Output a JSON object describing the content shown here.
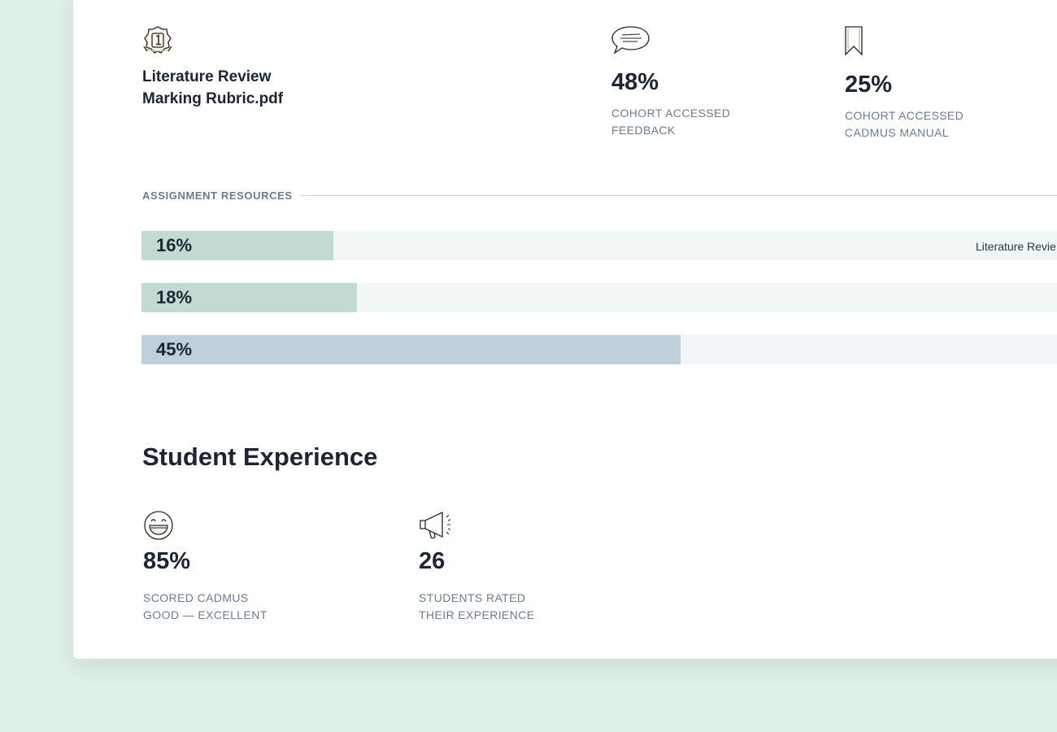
{
  "resource": {
    "icon": "badge-number-one-icon",
    "title_line1": "Literature Review",
    "title_line2": "Marking Rubric.pdf"
  },
  "stats_top": [
    {
      "icon": "speech-bubble-icon",
      "value": "48%",
      "caption_line1": "COHORT ACCESSED",
      "caption_line2": "FEEDBACK"
    },
    {
      "icon": "bookmark-icon",
      "value": "25%",
      "caption_line1": "COHORT ACCESSED",
      "caption_line2": "CADMUS MANUAL"
    }
  ],
  "assignment_resources": {
    "label": "ASSIGNMENT RESOURCES",
    "bars": [
      {
        "value": "16%",
        "fraction": 0.16,
        "label": "Literature Revie",
        "color": "#c2dbd2"
      },
      {
        "value": "18%",
        "fraction": 0.18,
        "label": "",
        "color": "#c2dbd2"
      },
      {
        "value": "45%",
        "fraction": 0.45,
        "label": "",
        "color": "#bed0d9"
      }
    ]
  },
  "student_experience": {
    "heading": "Student Experience",
    "stats": [
      {
        "icon": "grinning-face-icon",
        "value": "85%",
        "caption_line1": "SCORED CADMUS",
        "caption_line2": "GOOD — EXCELLENT"
      },
      {
        "icon": "megaphone-icon",
        "value": "26",
        "caption_line1": "STUDENTS RATED",
        "caption_line2": "THEIR EXPERIENCE"
      }
    ]
  },
  "colors": {
    "page_background": "#e0f1e7",
    "card_background": "#ffffff",
    "text_dark": "#1c2533",
    "text_muted": "#6a7b95"
  }
}
